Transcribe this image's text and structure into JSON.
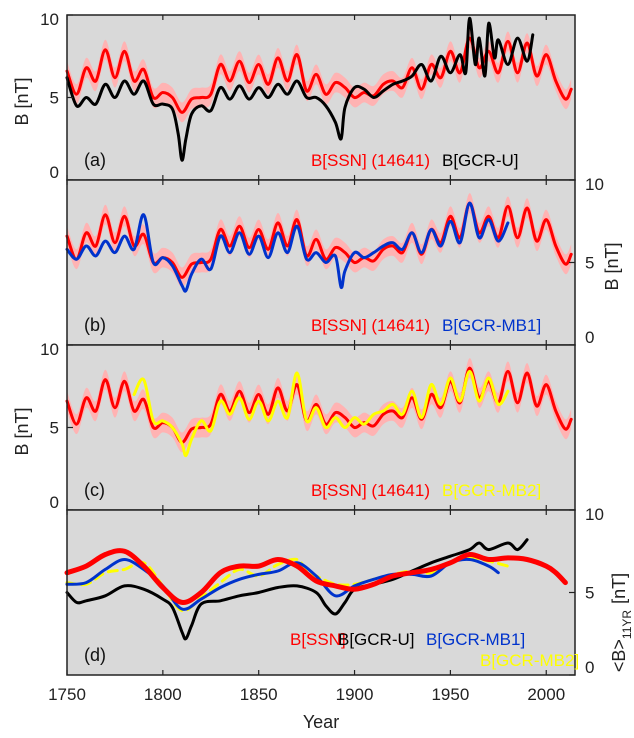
{
  "figure": {
    "xlabel": "Year",
    "x_ticks": [
      1750,
      1800,
      1850,
      1900,
      1950,
      2000
    ],
    "background": "#d9d9d9"
  },
  "chart_data": [
    {
      "type": "line",
      "panel_label": "(a)",
      "ylabel": "B [nT]",
      "ylabel_side": "left",
      "y_ticks": [
        0,
        5,
        10
      ],
      "ylim": [
        0,
        10
      ],
      "xlim": [
        1750,
        2015
      ],
      "band": {
        "series": "B[SSN] (14641)",
        "halfwidth": 0.6,
        "color": "#ffb3b3"
      },
      "legend": [
        {
          "label": "B[SSN] (14641)",
          "color": "#ff0000"
        },
        {
          "label": "B[GCR-U]",
          "color": "#000000"
        }
      ],
      "series": [
        {
          "name": "B[SSN] (14641)",
          "color": "#ff0000",
          "width": 3,
          "dash": "",
          "x": [
            1750,
            1755,
            1760,
            1765,
            1770,
            1775,
            1780,
            1785,
            1790,
            1795,
            1800,
            1805,
            1810,
            1815,
            1820,
            1825,
            1830,
            1835,
            1840,
            1845,
            1850,
            1855,
            1860,
            1865,
            1870,
            1875,
            1880,
            1885,
            1890,
            1895,
            1900,
            1905,
            1910,
            1915,
            1920,
            1925,
            1930,
            1935,
            1940,
            1945,
            1950,
            1955,
            1960,
            1965,
            1970,
            1975,
            1980,
            1985,
            1990,
            1995,
            2000,
            2005,
            2010,
            2013
          ],
          "values": [
            6.6,
            5.2,
            6.8,
            6.0,
            7.9,
            6.2,
            7.8,
            6.0,
            6.7,
            5.0,
            5.3,
            5.0,
            4.1,
            4.9,
            5.0,
            5.2,
            7.0,
            6.0,
            7.2,
            5.9,
            7.0,
            5.8,
            7.4,
            6.0,
            7.6,
            5.4,
            6.4,
            5.2,
            5.9,
            5.6,
            5.0,
            5.3,
            5.1,
            5.8,
            6.0,
            5.6,
            6.8,
            5.5,
            7.0,
            6.2,
            7.8,
            6.5,
            8.6,
            6.8,
            7.8,
            6.5,
            8.4,
            6.5,
            8.3,
            6.3,
            7.6,
            6.0,
            4.9,
            5.5
          ]
        },
        {
          "name": "B[GCR-U]",
          "color": "#000000",
          "width": 3,
          "dash": "",
          "x": [
            1750,
            1755,
            1760,
            1765,
            1770,
            1775,
            1780,
            1785,
            1790,
            1795,
            1800,
            1805,
            1808,
            1810,
            1812,
            1815,
            1820,
            1825,
            1830,
            1835,
            1840,
            1845,
            1850,
            1855,
            1860,
            1865,
            1870,
            1875,
            1880,
            1885,
            1890,
            1893,
            1895,
            1900,
            1905,
            1910,
            1915,
            1920,
            1925,
            1930,
            1935,
            1940,
            1945,
            1950,
            1955,
            1958,
            1960,
            1963,
            1965,
            1968,
            1970,
            1973,
            1975,
            1980,
            1985,
            1990,
            1993
          ],
          "values": [
            6.2,
            4.5,
            5.0,
            4.6,
            5.8,
            5.0,
            6.0,
            5.2,
            6.0,
            4.6,
            4.6,
            4.3,
            2.8,
            1.2,
            2.5,
            4.0,
            4.5,
            4.2,
            5.6,
            4.9,
            5.7,
            4.9,
            5.6,
            5.0,
            5.8,
            5.2,
            6.0,
            5.0,
            5.0,
            4.5,
            3.5,
            2.5,
            4.4,
            5.6,
            5.5,
            5.0,
            5.4,
            5.8,
            6.0,
            6.3,
            7.0,
            6.0,
            7.5,
            6.5,
            7.6,
            6.5,
            9.8,
            7.0,
            8.6,
            6.3,
            9.5,
            7.4,
            8.5,
            7.0,
            8.6,
            7.2,
            8.8
          ]
        }
      ]
    },
    {
      "type": "line",
      "panel_label": "(b)",
      "ylabel": "B [nT]",
      "ylabel_side": "right",
      "y_ticks": [
        0,
        5,
        10
      ],
      "ylim": [
        0,
        10
      ],
      "xlim": [
        1750,
        2015
      ],
      "band": {
        "series": "B[SSN] (14641)",
        "halfwidth": 0.6,
        "color": "#ffb3b3"
      },
      "legend": [
        {
          "label": "B[SSN] (14641)",
          "color": "#ff0000"
        },
        {
          "label": "B[GCR-MB1]",
          "color": "#0033cc"
        }
      ],
      "series": [
        {
          "name": "B[SSN] (14641)",
          "color": "#ff0000",
          "width": 3,
          "dash": "",
          "x": [
            1750,
            1755,
            1760,
            1765,
            1770,
            1775,
            1780,
            1785,
            1790,
            1795,
            1800,
            1805,
            1810,
            1815,
            1820,
            1825,
            1830,
            1835,
            1840,
            1845,
            1850,
            1855,
            1860,
            1865,
            1870,
            1875,
            1880,
            1885,
            1890,
            1895,
            1900,
            1905,
            1910,
            1915,
            1920,
            1925,
            1930,
            1935,
            1940,
            1945,
            1950,
            1955,
            1960,
            1965,
            1970,
            1975,
            1980,
            1985,
            1990,
            1995,
            2000,
            2005,
            2010,
            2013
          ],
          "values": [
            6.6,
            5.2,
            6.8,
            6.0,
            7.9,
            6.2,
            7.8,
            6.0,
            6.7,
            5.0,
            5.3,
            5.0,
            4.1,
            4.9,
            5.0,
            5.2,
            7.0,
            6.0,
            7.2,
            5.9,
            7.0,
            5.8,
            7.4,
            6.0,
            7.6,
            5.4,
            6.4,
            5.2,
            5.9,
            5.6,
            5.0,
            5.3,
            5.1,
            5.8,
            6.0,
            5.6,
            6.8,
            5.5,
            7.0,
            6.2,
            7.8,
            6.5,
            8.6,
            6.8,
            7.8,
            6.5,
            8.4,
            6.5,
            8.3,
            6.3,
            7.6,
            6.0,
            4.9,
            5.5
          ]
        },
        {
          "name": "B[GCR-MB1]",
          "color": "#0033cc",
          "width": 3,
          "dash": "",
          "x": [
            1750,
            1755,
            1760,
            1765,
            1770,
            1775,
            1780,
            1785,
            1790,
            1795,
            1800,
            1805,
            1810,
            1812,
            1815,
            1820,
            1825,
            1830,
            1835,
            1840,
            1845,
            1850,
            1855,
            1860,
            1865,
            1870,
            1875,
            1880,
            1885,
            1890,
            1893,
            1895,
            1900,
            1905,
            1910,
            1915,
            1920,
            1925,
            1930,
            1935,
            1940,
            1945,
            1950,
            1955,
            1960,
            1965,
            1970,
            1975,
            1980
          ],
          "values": [
            5.8,
            5.2,
            6.0,
            5.4,
            6.3,
            5.6,
            6.6,
            5.8,
            7.9,
            5.0,
            5.3,
            4.8,
            3.6,
            3.3,
            4.3,
            5.2,
            4.6,
            6.6,
            5.6,
            6.8,
            5.5,
            6.6,
            5.3,
            6.8,
            5.6,
            7.2,
            5.2,
            5.6,
            5.0,
            5.4,
            3.5,
            4.5,
            5.6,
            5.3,
            5.6,
            6.0,
            6.2,
            5.8,
            6.8,
            5.6,
            7.0,
            6.0,
            7.5,
            6.2,
            8.6,
            6.5,
            7.6,
            6.3,
            7.4
          ]
        }
      ]
    },
    {
      "type": "line",
      "panel_label": "(c)",
      "ylabel": "B [nT]",
      "ylabel_side": "left",
      "y_ticks": [
        0,
        5,
        10
      ],
      "ylim": [
        0,
        10
      ],
      "xlim": [
        1750,
        2015
      ],
      "band": {
        "series": "B[SSN] (14641)",
        "halfwidth": 0.6,
        "color": "#ffb3b3"
      },
      "legend": [
        {
          "label": "B[SSN] (14641)",
          "color": "#ff0000"
        },
        {
          "label": "B[GCR-MB2]",
          "color": "#ffff00"
        }
      ],
      "series": [
        {
          "name": "B[SSN] (14641)",
          "color": "#ff0000",
          "width": 3,
          "dash": "",
          "x": [
            1750,
            1755,
            1760,
            1765,
            1770,
            1775,
            1780,
            1785,
            1790,
            1795,
            1800,
            1805,
            1810,
            1815,
            1820,
            1825,
            1830,
            1835,
            1840,
            1845,
            1850,
            1855,
            1860,
            1865,
            1870,
            1875,
            1880,
            1885,
            1890,
            1895,
            1900,
            1905,
            1910,
            1915,
            1920,
            1925,
            1930,
            1935,
            1940,
            1945,
            1950,
            1955,
            1960,
            1965,
            1970,
            1975,
            1980,
            1985,
            1990,
            1995,
            2000,
            2005,
            2010,
            2013
          ],
          "values": [
            6.6,
            5.2,
            6.8,
            6.0,
            7.9,
            6.2,
            7.8,
            6.0,
            6.7,
            5.0,
            5.3,
            5.0,
            4.1,
            4.9,
            5.0,
            5.2,
            7.0,
            6.0,
            7.2,
            5.9,
            7.0,
            5.8,
            7.4,
            6.0,
            7.6,
            5.4,
            6.4,
            5.2,
            5.9,
            5.6,
            5.0,
            5.3,
            5.1,
            5.8,
            6.0,
            5.6,
            6.8,
            5.5,
            7.0,
            6.2,
            7.8,
            6.5,
            8.6,
            6.8,
            7.8,
            6.5,
            8.4,
            6.5,
            8.3,
            6.3,
            7.6,
            6.0,
            4.9,
            5.5
          ]
        },
        {
          "name": "B[GCR-MB2]",
          "color": "#ffff00",
          "width": 3,
          "dash": "",
          "x": [
            1785,
            1790,
            1795,
            1800,
            1805,
            1810,
            1812,
            1815,
            1820,
            1825,
            1830,
            1835,
            1840,
            1845,
            1850,
            1855,
            1860,
            1865,
            1870,
            1875,
            1880,
            1885,
            1890,
            1895,
            1900,
            1905,
            1910,
            1915,
            1920,
            1925,
            1930,
            1935,
            1940,
            1945,
            1950,
            1955,
            1960,
            1965,
            1970,
            1975,
            1980
          ],
          "values": [
            7.0,
            7.9,
            5.4,
            5.4,
            5.0,
            4.0,
            3.3,
            4.3,
            5.4,
            4.8,
            6.6,
            5.8,
            6.8,
            5.5,
            6.6,
            5.4,
            6.6,
            5.6,
            8.3,
            5.4,
            6.2,
            5.0,
            5.6,
            5.0,
            5.6,
            5.2,
            5.8,
            6.0,
            6.4,
            5.8,
            7.2,
            5.6,
            7.6,
            6.4,
            8.0,
            6.6,
            8.4,
            6.6,
            8.0,
            6.4,
            7.2
          ]
        }
      ]
    },
    {
      "type": "line",
      "panel_label": "(d)",
      "ylabel": "<B>",
      "ylabel_sub": "11YR",
      "ylabel_unit": "[nT]",
      "ylabel_side": "right",
      "y_ticks": [
        0,
        5,
        10
      ],
      "ylim": [
        0,
        10
      ],
      "xlim": [
        1750,
        2015
      ],
      "legend": [
        {
          "label": "B[SSN]",
          "color": "#ff0000"
        },
        {
          "label": "B[GCR-U]",
          "color": "#000000"
        },
        {
          "label": "B[GCR-MB1]",
          "color": "#0033cc"
        },
        {
          "label": "B[GCR-MB2]",
          "color": "#ffff00"
        }
      ],
      "series": [
        {
          "name": "B[GCR-MB2]",
          "color": "#ffff00",
          "width": 3,
          "dash": "9,6",
          "x": [
            1750,
            1760,
            1770,
            1780,
            1790,
            1800,
            1810,
            1820,
            1830,
            1840,
            1850,
            1860,
            1870,
            1875,
            1880,
            1890,
            1900,
            1910,
            1920,
            1930,
            1940,
            1950,
            1960,
            1970,
            1980
          ],
          "values": [
            5.6,
            5.5,
            6.2,
            6.4,
            6.8,
            5.4,
            3.9,
            4.7,
            5.6,
            6.4,
            6.0,
            6.7,
            7.0,
            6.3,
            6.0,
            5.5,
            5.5,
            5.8,
            6.1,
            6.3,
            6.2,
            6.8,
            7.1,
            6.9,
            6.6
          ]
        },
        {
          "name": "B[GCR-MB1]",
          "color": "#0033cc",
          "width": 3,
          "dash": "",
          "x": [
            1750,
            1760,
            1770,
            1780,
            1790,
            1800,
            1810,
            1820,
            1830,
            1840,
            1850,
            1860,
            1870,
            1880,
            1890,
            1900,
            1910,
            1920,
            1930,
            1940,
            1950,
            1960,
            1970,
            1975
          ],
          "values": [
            5.5,
            5.6,
            6.4,
            7.0,
            6.4,
            5.4,
            4.0,
            4.6,
            5.3,
            5.8,
            6.1,
            6.3,
            6.8,
            6.0,
            4.8,
            5.4,
            5.8,
            6.1,
            6.1,
            6.0,
            6.8,
            7.0,
            6.6,
            6.2
          ]
        },
        {
          "name": "B[GCR-U]",
          "color": "#000000",
          "width": 3,
          "dash": "",
          "x": [
            1750,
            1755,
            1760,
            1770,
            1780,
            1790,
            1800,
            1805,
            1810,
            1812,
            1815,
            1820,
            1830,
            1840,
            1850,
            1860,
            1870,
            1880,
            1885,
            1890,
            1895,
            1900,
            1910,
            1920,
            1930,
            1940,
            1950,
            1960,
            1965,
            1970,
            1980,
            1985,
            1990
          ],
          "values": [
            5.0,
            4.4,
            4.5,
            4.8,
            5.4,
            5.2,
            4.6,
            4.1,
            2.6,
            2.2,
            3.0,
            4.3,
            4.5,
            4.8,
            5.0,
            5.3,
            5.4,
            5.0,
            4.2,
            3.7,
            4.4,
            5.2,
            5.5,
            5.8,
            6.3,
            6.8,
            7.2,
            7.6,
            8.0,
            7.6,
            8.0,
            7.6,
            8.2
          ]
        },
        {
          "name": "B[SSN]",
          "color": "#ff0000",
          "width": 5,
          "dash": "",
          "x": [
            1750,
            1760,
            1770,
            1780,
            1790,
            1800,
            1810,
            1820,
            1830,
            1840,
            1850,
            1860,
            1870,
            1880,
            1890,
            1900,
            1910,
            1920,
            1930,
            1940,
            1950,
            1960,
            1970,
            1980,
            1990,
            2000,
            2005,
            2010
          ],
          "values": [
            6.2,
            6.6,
            7.3,
            7.5,
            6.6,
            5.3,
            4.4,
            5.0,
            6.2,
            6.6,
            6.6,
            7.0,
            6.6,
            5.7,
            5.4,
            5.2,
            5.5,
            6.0,
            6.2,
            6.4,
            6.8,
            7.3,
            7.0,
            7.1,
            7.0,
            6.6,
            6.2,
            5.6
          ]
        }
      ]
    }
  ]
}
